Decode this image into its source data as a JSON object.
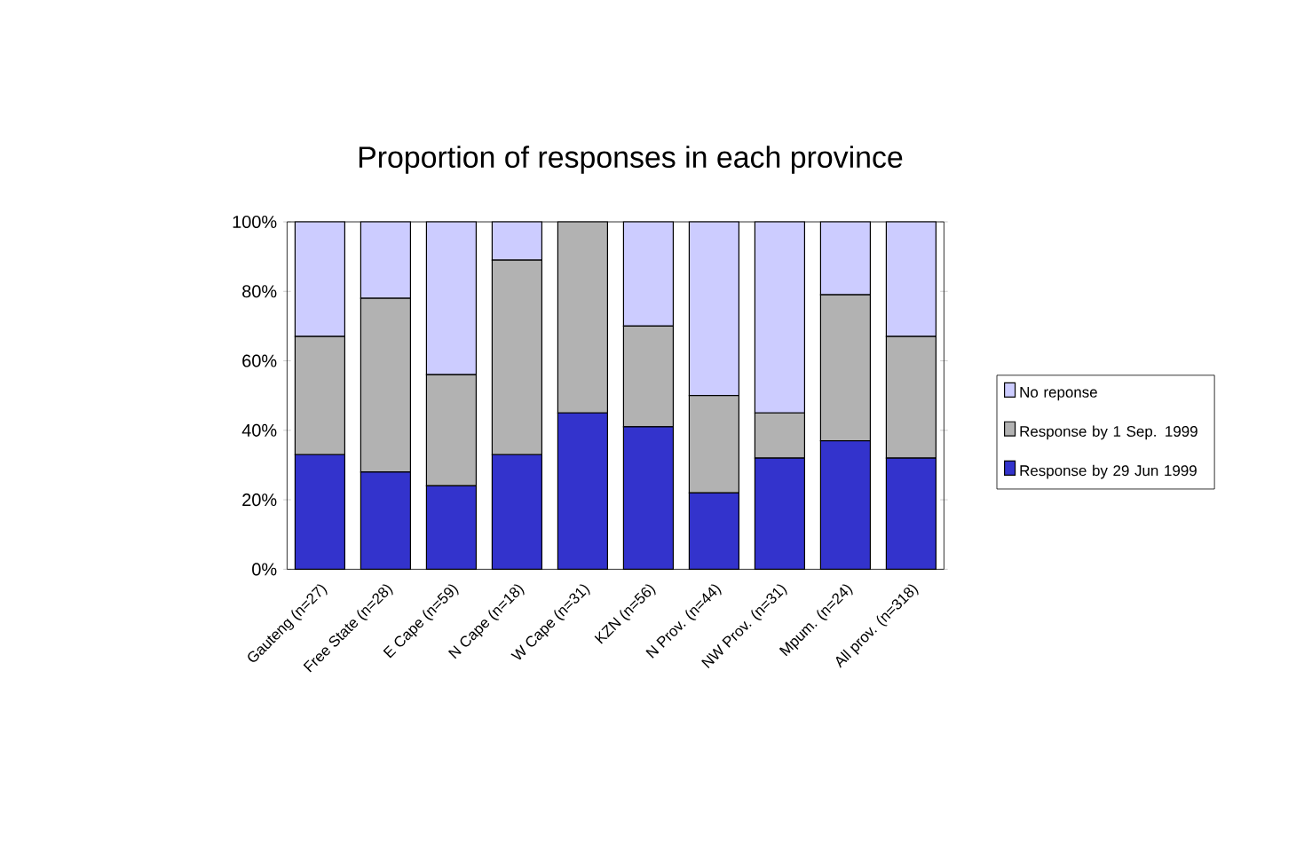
{
  "chart_data": {
    "type": "bar",
    "stacked": true,
    "title": "Proportion of responses in each province",
    "categories": [
      "Gauteng (n=27)",
      "Free State (n=28)",
      "E Cape (n=59)",
      "N Cape (n=18)",
      "W Cape (n=31)",
      "KZN (n=56)",
      "N Prov. (n=44)",
      "NW Prov. (n=31)",
      "Mpum. (n=24)",
      "All prov. (n=318)"
    ],
    "series": [
      {
        "name": "Response by 29 Jun 1999",
        "color": "#3333cc",
        "values": [
          33,
          28,
          24,
          33,
          45,
          41,
          22,
          32,
          37,
          32
        ]
      },
      {
        "name": "Response by 1 Sep. 1999",
        "color": "#b2b2b2",
        "values": [
          34,
          50,
          32,
          56,
          55,
          29,
          28,
          13,
          42,
          35
        ]
      },
      {
        "name": "No reponse",
        "color": "#ccccff",
        "values": [
          33,
          22,
          44,
          11,
          0,
          30,
          50,
          55,
          21,
          33
        ]
      }
    ],
    "ylim": [
      0,
      100
    ],
    "yticks": [
      {
        "value": 0,
        "label": "0%"
      },
      {
        "value": 20,
        "label": "20%"
      },
      {
        "value": 40,
        "label": "40%"
      },
      {
        "value": 60,
        "label": "60%"
      },
      {
        "value": 80,
        "label": "80%"
      },
      {
        "value": 100,
        "label": "100%"
      }
    ],
    "grid": false,
    "legend": "right"
  }
}
